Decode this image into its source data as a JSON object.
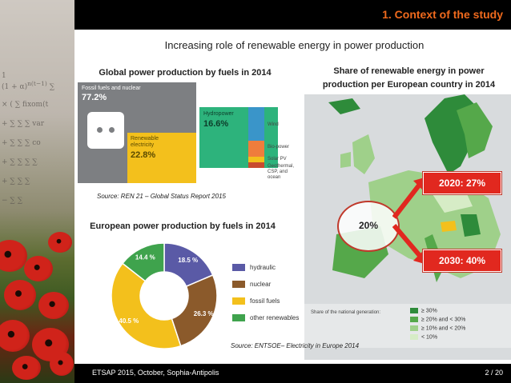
{
  "header": {
    "title": "1. Context of the study"
  },
  "slide_title": "Increasing role of renewable energy in power production",
  "global_section": {
    "heading": "Global power production by fuels in 2014",
    "fossil_label": "Fossil fuels and nuclear",
    "fossil_value": "77.2%",
    "renewable_label": "Renewable electricity",
    "renewable_value": "22.8%",
    "hydro_label": "Hydropower",
    "hydro_value": "16.6%",
    "wind_label": "Wind",
    "biopower_label": "Bio-power",
    "solar_label": "Solar PV",
    "geo_label": "Geothermal, CSP, and ocean",
    "source": "Source: REN 21 – Global Status Report 2015"
  },
  "europe_section": {
    "heading": "European power production by fuels in 2014",
    "chart_data": {
      "type": "pie",
      "title": "European power production by fuels in 2014",
      "categories": [
        "hydraulic",
        "nuclear",
        "fossil fuels",
        "other renewables"
      ],
      "values": [
        18.5,
        26.3,
        40.5,
        14.4
      ],
      "labels": [
        "18.5 %",
        "26.3 %",
        "40.5 %",
        "14.4 %"
      ],
      "colors": [
        "#5a5aa6",
        "#8b5a2b",
        "#f3c01c",
        "#3fa34d"
      ],
      "legend_position": "right"
    }
  },
  "map_section": {
    "heading_line1": "Share of renewable energy in power",
    "heading_line2": "production per European country in 2014",
    "callout_center": "20%",
    "callout_2020": "2020: 27%",
    "callout_2030": "2030: 40%",
    "legend_title": "Share of the national generation:",
    "legend_items": [
      "≥ 30%",
      "≥ 20% and < 30%",
      "≥ 10% and < 20%",
      "< 10%"
    ],
    "legend_colors": [
      "#2e8b3a",
      "#55a84a",
      "#9fd08a",
      "#d6ecc6"
    ],
    "source": "Source: ENTSOE– Electricity in Europe 2014"
  },
  "footer": {
    "text": "ETSAP 2015, October, Sophia-Antipolis",
    "page": "2 / 20"
  }
}
